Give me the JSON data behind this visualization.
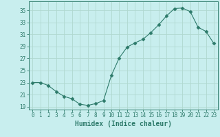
{
  "x": [
    0,
    1,
    2,
    3,
    4,
    5,
    6,
    7,
    8,
    9,
    10,
    11,
    12,
    13,
    14,
    15,
    16,
    17,
    18,
    19,
    20,
    21,
    22,
    23
  ],
  "y": [
    23.0,
    23.0,
    22.5,
    21.5,
    20.7,
    20.3,
    19.4,
    19.2,
    19.5,
    20.0,
    24.2,
    27.1,
    28.9,
    29.6,
    30.2,
    31.3,
    32.6,
    34.1,
    35.3,
    35.4,
    34.8,
    32.2,
    31.5,
    29.5
  ],
  "line_color": "#2d7a6a",
  "marker": "D",
  "marker_size": 2.5,
  "bg_color": "#c8eeee",
  "grid_color": "#b0d8d0",
  "xlabel": "Humidex (Indice chaleur)",
  "xlim": [
    -0.5,
    23.5
  ],
  "ylim": [
    18.5,
    36.5
  ],
  "yticks": [
    19,
    21,
    23,
    25,
    27,
    29,
    31,
    33,
    35
  ],
  "xtick_labels": [
    "0",
    "1",
    "2",
    "3",
    "4",
    "5",
    "6",
    "7",
    "8",
    "9",
    "10",
    "11",
    "12",
    "13",
    "14",
    "15",
    "16",
    "17",
    "18",
    "19",
    "20",
    "21",
    "22",
    "23"
  ],
  "tick_fontsize": 5.5,
  "label_fontsize": 7.0,
  "linewidth": 0.8
}
